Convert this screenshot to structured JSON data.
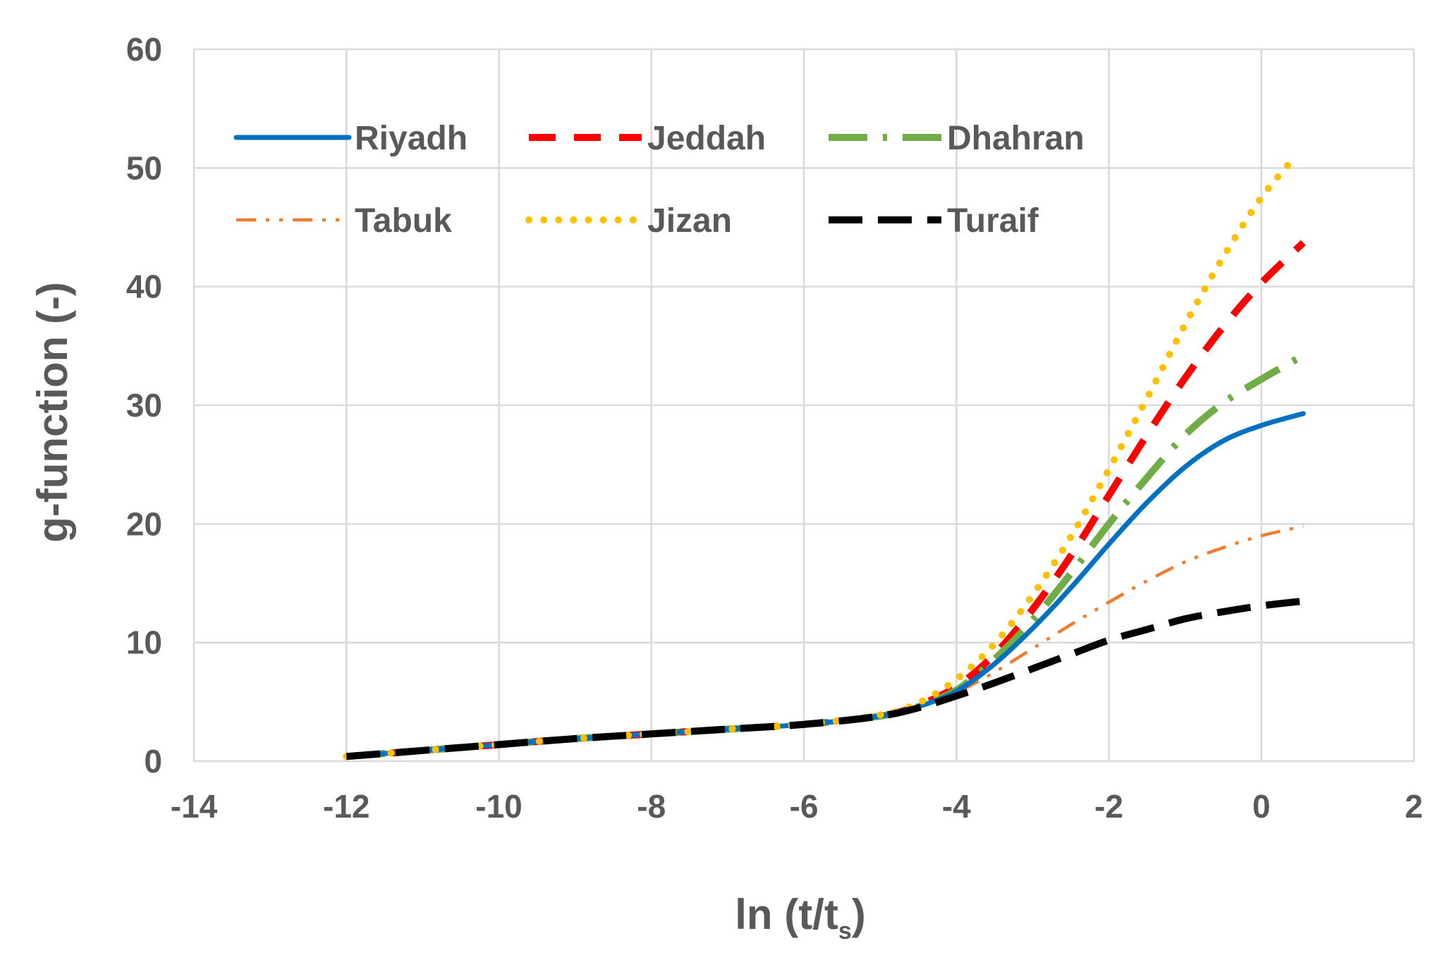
{
  "chart_data": {
    "type": "line",
    "title": "",
    "xlabel_main": "ln (t/t",
    "xlabel_sub": "s",
    "xlabel_close": ")",
    "ylabel": "g-function (-)",
    "xlim": [
      -14,
      2
    ],
    "ylim": [
      0,
      60
    ],
    "x_ticks": [
      -14,
      -12,
      -10,
      -8,
      -6,
      -4,
      -2,
      0,
      2
    ],
    "y_ticks": [
      0,
      10,
      20,
      30,
      40,
      50,
      60
    ],
    "x_tick_labels": [
      "-14",
      "-12",
      "-10",
      "-8",
      "-6",
      "-4",
      "-2",
      "0",
      "2"
    ],
    "y_tick_labels": [
      "0",
      "10",
      "20",
      "30",
      "40",
      "50",
      "60"
    ],
    "grid": true,
    "legend_position": "top-left",
    "series": [
      {
        "name": "Riyadh",
        "color": "#0070c0",
        "style": "solid",
        "x": [
          -12,
          -11,
          -10,
          -9,
          -8,
          -7,
          -6,
          -5,
          -4.5,
          -4,
          -3.5,
          -3,
          -2.5,
          -2,
          -1.5,
          -1,
          -0.5,
          0,
          0.55
        ],
        "y": [
          0.4,
          0.9,
          1.4,
          1.9,
          2.3,
          2.7,
          3.1,
          3.8,
          4.6,
          5.9,
          8.2,
          11.2,
          14.6,
          18.3,
          21.8,
          24.8,
          27.0,
          28.3,
          29.3
        ]
      },
      {
        "name": "Jeddah",
        "color": "#ff0000",
        "style": "dash",
        "x": [
          -12,
          -11,
          -10,
          -9,
          -8,
          -7,
          -6,
          -5,
          -4.5,
          -4,
          -3.5,
          -3,
          -2.5,
          -2,
          -1.5,
          -1,
          -0.5,
          0,
          0.55
        ],
        "y": [
          0.4,
          0.9,
          1.4,
          1.9,
          2.3,
          2.7,
          3.1,
          3.8,
          4.7,
          6.3,
          9.0,
          12.8,
          17.3,
          22.4,
          27.5,
          32.3,
          36.6,
          40.3,
          43.7
        ]
      },
      {
        "name": "Dhahran",
        "color": "#70ad47",
        "style": "longdashdot",
        "x": [
          -12,
          -11,
          -10,
          -9,
          -8,
          -7,
          -6,
          -5,
          -4.5,
          -4,
          -3.5,
          -3,
          -2.5,
          -2,
          -1.5,
          -1,
          -0.5,
          0,
          0.55
        ],
        "y": [
          0.4,
          0.9,
          1.4,
          1.9,
          2.3,
          2.7,
          3.1,
          3.8,
          4.6,
          6.0,
          8.6,
          11.9,
          15.8,
          20.0,
          23.9,
          27.5,
          30.2,
          32.2,
          34.2
        ]
      },
      {
        "name": "Tabuk",
        "color": "#ed7d31",
        "style": "dashdotdot",
        "x": [
          -12,
          -11,
          -10,
          -9,
          -8,
          -7,
          -6,
          -5,
          -4.5,
          -4,
          -3.5,
          -3,
          -2.5,
          -2,
          -1.5,
          -1,
          -0.5,
          0,
          0.55
        ],
        "y": [
          0.4,
          0.9,
          1.4,
          1.9,
          2.3,
          2.7,
          3.1,
          3.8,
          4.6,
          5.8,
          7.5,
          9.5,
          11.5,
          13.4,
          15.2,
          16.8,
          18.0,
          19.0,
          19.8
        ]
      },
      {
        "name": "Jizan",
        "color": "#ffc000",
        "style": "dot",
        "x": [
          -12,
          -11,
          -10,
          -9,
          -8,
          -7,
          -6,
          -5,
          -4.5,
          -4,
          -3.5,
          -3,
          -2.5,
          -2,
          -1.5,
          -1,
          -0.5,
          0,
          0.45
        ],
        "y": [
          0.4,
          0.9,
          1.4,
          1.9,
          2.3,
          2.7,
          3.1,
          3.9,
          4.9,
          6.9,
          9.9,
          14.0,
          18.9,
          24.6,
          30.6,
          36.8,
          42.5,
          47.5,
          51.0
        ]
      },
      {
        "name": "Turaif",
        "color": "#000000",
        "style": "longdash",
        "x": [
          -12,
          -11,
          -10,
          -9,
          -8,
          -7,
          -6,
          -5,
          -4.5,
          -4,
          -3.5,
          -3,
          -2.5,
          -2,
          -1.5,
          -1,
          -0.5,
          0,
          0.55
        ],
        "y": [
          0.4,
          0.9,
          1.4,
          1.9,
          2.3,
          2.7,
          3.1,
          3.8,
          4.5,
          5.5,
          6.6,
          7.8,
          9.0,
          10.2,
          11.1,
          12.0,
          12.6,
          13.1,
          13.5
        ]
      }
    ]
  }
}
